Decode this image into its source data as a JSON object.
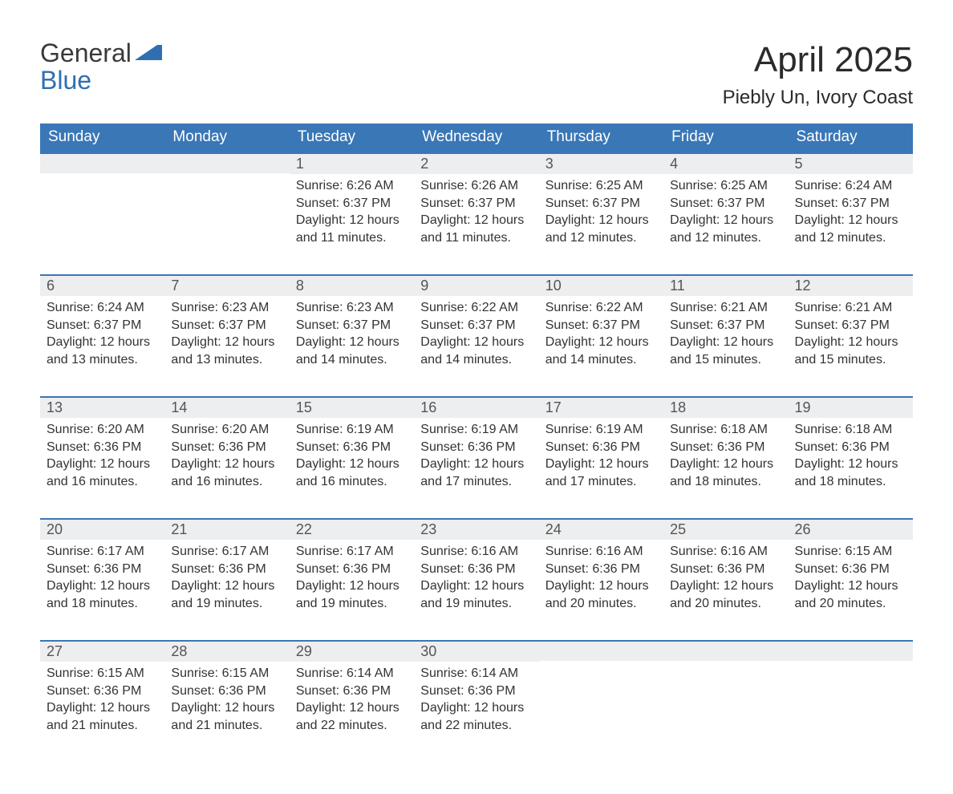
{
  "brand": {
    "word1": "General",
    "word2": "Blue"
  },
  "title": "April 2025",
  "location": "Piebly Un, Ivory Coast",
  "colors": {
    "header_bg": "#3a77b6",
    "header_text": "#ffffff",
    "daynum_bg": "#edeeef",
    "daynum_border": "#3a77b6",
    "page_bg": "#ffffff",
    "text": "#333333",
    "logo_blue": "#2f6fb0"
  },
  "calendar": {
    "type": "table",
    "columns": [
      "Sunday",
      "Monday",
      "Tuesday",
      "Wednesday",
      "Thursday",
      "Friday",
      "Saturday"
    ],
    "weeks": [
      [
        null,
        null,
        {
          "n": "1",
          "sunrise": "Sunrise: 6:26 AM",
          "sunset": "Sunset: 6:37 PM",
          "daylight": "Daylight: 12 hours and 11 minutes."
        },
        {
          "n": "2",
          "sunrise": "Sunrise: 6:26 AM",
          "sunset": "Sunset: 6:37 PM",
          "daylight": "Daylight: 12 hours and 11 minutes."
        },
        {
          "n": "3",
          "sunrise": "Sunrise: 6:25 AM",
          "sunset": "Sunset: 6:37 PM",
          "daylight": "Daylight: 12 hours and 12 minutes."
        },
        {
          "n": "4",
          "sunrise": "Sunrise: 6:25 AM",
          "sunset": "Sunset: 6:37 PM",
          "daylight": "Daylight: 12 hours and 12 minutes."
        },
        {
          "n": "5",
          "sunrise": "Sunrise: 6:24 AM",
          "sunset": "Sunset: 6:37 PM",
          "daylight": "Daylight: 12 hours and 12 minutes."
        }
      ],
      [
        {
          "n": "6",
          "sunrise": "Sunrise: 6:24 AM",
          "sunset": "Sunset: 6:37 PM",
          "daylight": "Daylight: 12 hours and 13 minutes."
        },
        {
          "n": "7",
          "sunrise": "Sunrise: 6:23 AM",
          "sunset": "Sunset: 6:37 PM",
          "daylight": "Daylight: 12 hours and 13 minutes."
        },
        {
          "n": "8",
          "sunrise": "Sunrise: 6:23 AM",
          "sunset": "Sunset: 6:37 PM",
          "daylight": "Daylight: 12 hours and 14 minutes."
        },
        {
          "n": "9",
          "sunrise": "Sunrise: 6:22 AM",
          "sunset": "Sunset: 6:37 PM",
          "daylight": "Daylight: 12 hours and 14 minutes."
        },
        {
          "n": "10",
          "sunrise": "Sunrise: 6:22 AM",
          "sunset": "Sunset: 6:37 PM",
          "daylight": "Daylight: 12 hours and 14 minutes."
        },
        {
          "n": "11",
          "sunrise": "Sunrise: 6:21 AM",
          "sunset": "Sunset: 6:37 PM",
          "daylight": "Daylight: 12 hours and 15 minutes."
        },
        {
          "n": "12",
          "sunrise": "Sunrise: 6:21 AM",
          "sunset": "Sunset: 6:37 PM",
          "daylight": "Daylight: 12 hours and 15 minutes."
        }
      ],
      [
        {
          "n": "13",
          "sunrise": "Sunrise: 6:20 AM",
          "sunset": "Sunset: 6:36 PM",
          "daylight": "Daylight: 12 hours and 16 minutes."
        },
        {
          "n": "14",
          "sunrise": "Sunrise: 6:20 AM",
          "sunset": "Sunset: 6:36 PM",
          "daylight": "Daylight: 12 hours and 16 minutes."
        },
        {
          "n": "15",
          "sunrise": "Sunrise: 6:19 AM",
          "sunset": "Sunset: 6:36 PM",
          "daylight": "Daylight: 12 hours and 16 minutes."
        },
        {
          "n": "16",
          "sunrise": "Sunrise: 6:19 AM",
          "sunset": "Sunset: 6:36 PM",
          "daylight": "Daylight: 12 hours and 17 minutes."
        },
        {
          "n": "17",
          "sunrise": "Sunrise: 6:19 AM",
          "sunset": "Sunset: 6:36 PM",
          "daylight": "Daylight: 12 hours and 17 minutes."
        },
        {
          "n": "18",
          "sunrise": "Sunrise: 6:18 AM",
          "sunset": "Sunset: 6:36 PM",
          "daylight": "Daylight: 12 hours and 18 minutes."
        },
        {
          "n": "19",
          "sunrise": "Sunrise: 6:18 AM",
          "sunset": "Sunset: 6:36 PM",
          "daylight": "Daylight: 12 hours and 18 minutes."
        }
      ],
      [
        {
          "n": "20",
          "sunrise": "Sunrise: 6:17 AM",
          "sunset": "Sunset: 6:36 PM",
          "daylight": "Daylight: 12 hours and 18 minutes."
        },
        {
          "n": "21",
          "sunrise": "Sunrise: 6:17 AM",
          "sunset": "Sunset: 6:36 PM",
          "daylight": "Daylight: 12 hours and 19 minutes."
        },
        {
          "n": "22",
          "sunrise": "Sunrise: 6:17 AM",
          "sunset": "Sunset: 6:36 PM",
          "daylight": "Daylight: 12 hours and 19 minutes."
        },
        {
          "n": "23",
          "sunrise": "Sunrise: 6:16 AM",
          "sunset": "Sunset: 6:36 PM",
          "daylight": "Daylight: 12 hours and 19 minutes."
        },
        {
          "n": "24",
          "sunrise": "Sunrise: 6:16 AM",
          "sunset": "Sunset: 6:36 PM",
          "daylight": "Daylight: 12 hours and 20 minutes."
        },
        {
          "n": "25",
          "sunrise": "Sunrise: 6:16 AM",
          "sunset": "Sunset: 6:36 PM",
          "daylight": "Daylight: 12 hours and 20 minutes."
        },
        {
          "n": "26",
          "sunrise": "Sunrise: 6:15 AM",
          "sunset": "Sunset: 6:36 PM",
          "daylight": "Daylight: 12 hours and 20 minutes."
        }
      ],
      [
        {
          "n": "27",
          "sunrise": "Sunrise: 6:15 AM",
          "sunset": "Sunset: 6:36 PM",
          "daylight": "Daylight: 12 hours and 21 minutes."
        },
        {
          "n": "28",
          "sunrise": "Sunrise: 6:15 AM",
          "sunset": "Sunset: 6:36 PM",
          "daylight": "Daylight: 12 hours and 21 minutes."
        },
        {
          "n": "29",
          "sunrise": "Sunrise: 6:14 AM",
          "sunset": "Sunset: 6:36 PM",
          "daylight": "Daylight: 12 hours and 22 minutes."
        },
        {
          "n": "30",
          "sunrise": "Sunrise: 6:14 AM",
          "sunset": "Sunset: 6:36 PM",
          "daylight": "Daylight: 12 hours and 22 minutes."
        },
        null,
        null,
        null
      ]
    ]
  }
}
